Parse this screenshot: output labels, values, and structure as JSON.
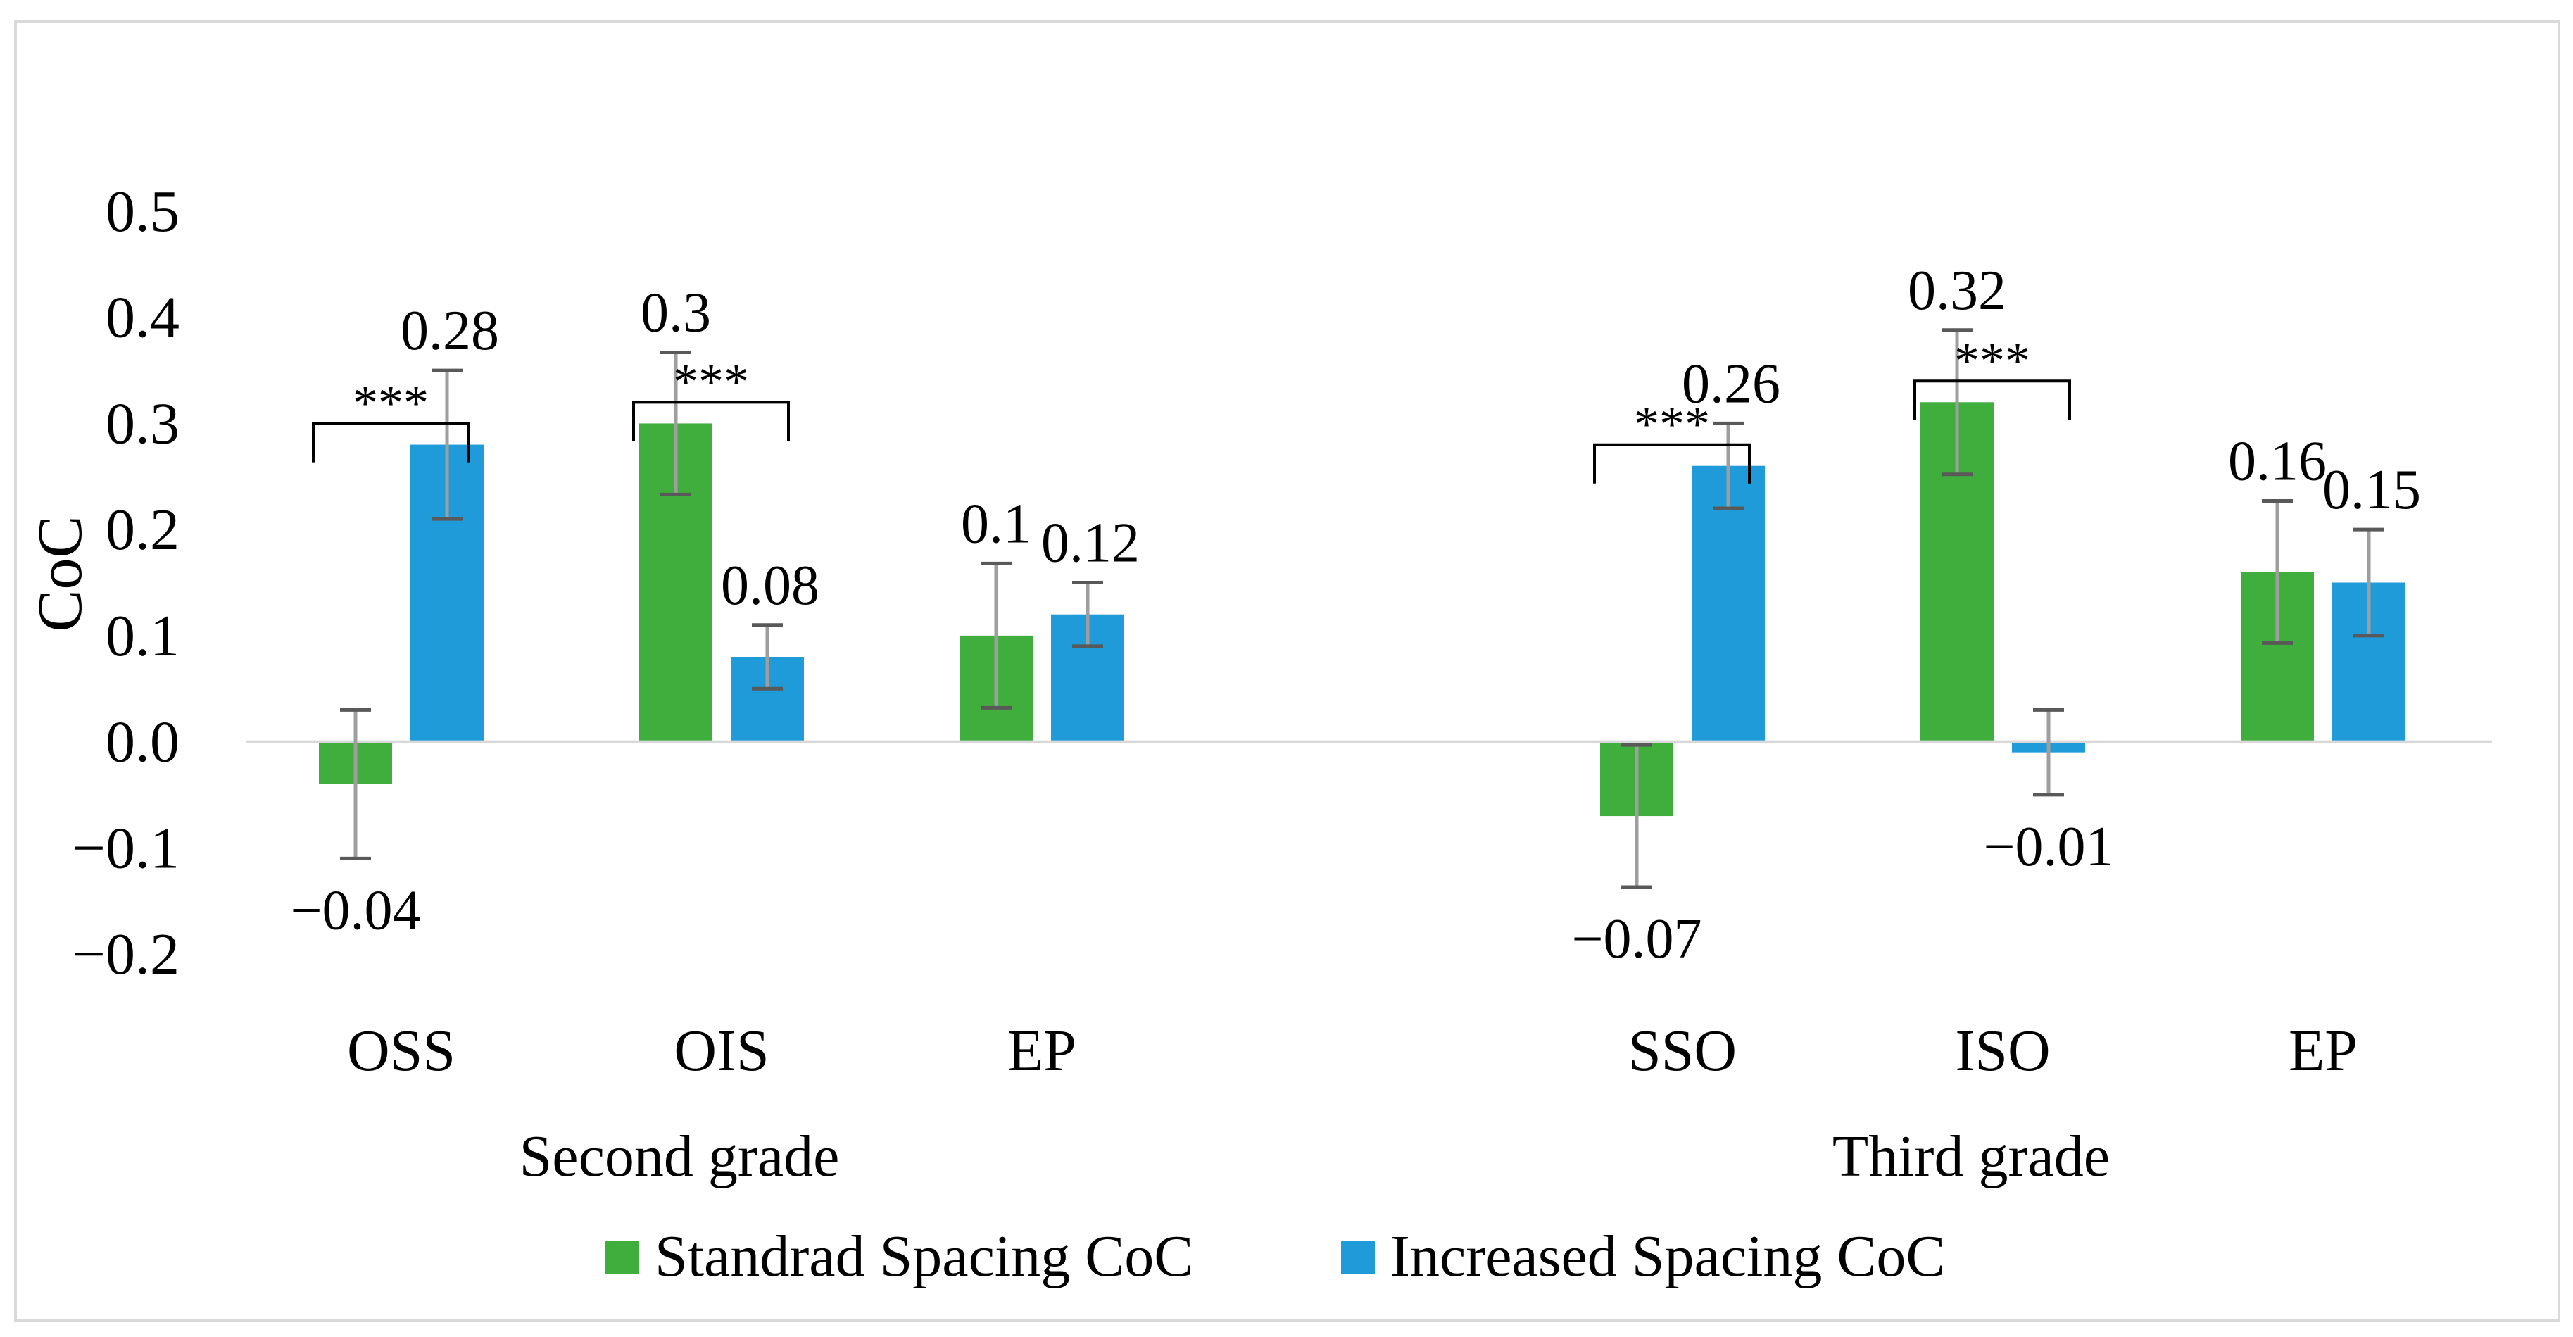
{
  "chart_data": {
    "type": "bar",
    "title": "",
    "ylabel": "CoC",
    "xlabel": "",
    "ylim": [
      -0.2,
      0.5
    ],
    "y_ticks": [
      "0.5",
      "0.4",
      "0.3",
      "0.2",
      "0.1",
      "0.0",
      "−0.1",
      "−0.2"
    ],
    "y_tick_values": [
      0.5,
      0.4,
      0.3,
      0.2,
      0.1,
      0.0,
      -0.1,
      -0.2
    ],
    "groups": [
      {
        "name": "Second grade",
        "categories": [
          "OSS",
          "OIS",
          "EP"
        ]
      },
      {
        "name": "Third grade",
        "categories": [
          "SSO",
          "ISO",
          "EP"
        ]
      }
    ],
    "categories": [
      "OSS",
      "OIS",
      "EP",
      "SSO",
      "ISO",
      "EP"
    ],
    "series": [
      {
        "name": "Standrad Spacing CoC",
        "color": "#3fae3d",
        "values": [
          -0.04,
          0.3,
          0.1,
          -0.07,
          0.32,
          0.16
        ],
        "labels": [
          "−0.04",
          "0.3",
          "0.1",
          "−0.07",
          "0.32",
          "0.16"
        ],
        "err": [
          0.07,
          0.067,
          0.068,
          0.067,
          0.068,
          0.067
        ]
      },
      {
        "name": "Increased Spacing CoC",
        "color": "#1f9bd9",
        "values": [
          0.28,
          0.08,
          0.12,
          0.26,
          -0.01,
          0.15
        ],
        "labels": [
          "0.28",
          "0.08",
          "0.12",
          "0.26",
          "−0.01",
          "0.15"
        ],
        "err": [
          0.07,
          0.03,
          0.03,
          0.04,
          0.04,
          0.05
        ]
      }
    ],
    "significance": [
      {
        "category": "OSS",
        "label": "***"
      },
      {
        "category": "OIS",
        "label": "***"
      },
      {
        "category": "SSO",
        "label": "***"
      },
      {
        "category": "ISO",
        "label": "***"
      }
    ],
    "legend_position": "bottom",
    "grid": false
  }
}
